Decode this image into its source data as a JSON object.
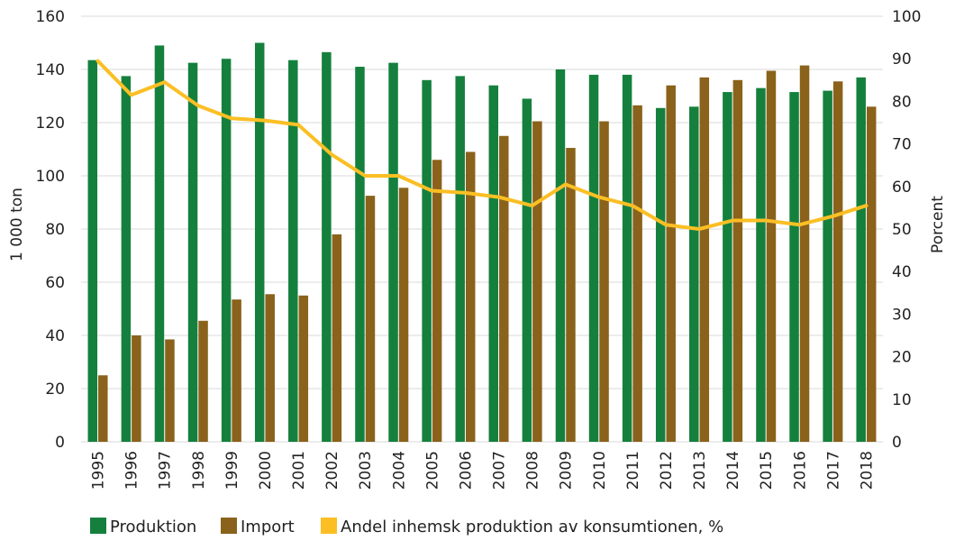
{
  "chart_data": {
    "type": "bar",
    "categories": [
      "1995",
      "1996",
      "1997",
      "1998",
      "1999",
      "2000",
      "2001",
      "2002",
      "2003",
      "2004",
      "2005",
      "2006",
      "2007",
      "2008",
      "2009",
      "2010",
      "2011",
      "2012",
      "2013",
      "2014",
      "2015",
      "2016",
      "2017",
      "2018"
    ],
    "series": [
      {
        "name": "Produktion",
        "type": "bar",
        "axis": "left",
        "color": "#15803d",
        "values": [
          143.5,
          137.5,
          149,
          142.5,
          144,
          150,
          143.5,
          146.5,
          141,
          142.5,
          136,
          137.5,
          134,
          129,
          140,
          138,
          138,
          125.5,
          126,
          131.5,
          133,
          131.5,
          132,
          137
        ]
      },
      {
        "name": "Import",
        "type": "bar",
        "axis": "left",
        "color": "#8a621b",
        "values": [
          25,
          40,
          38.5,
          45.5,
          53.5,
          55.5,
          55,
          78,
          92.5,
          95.5,
          106,
          109,
          115,
          120.5,
          110.5,
          120.5,
          126.5,
          134,
          137,
          136,
          139.5,
          141.5,
          135.5,
          126
        ]
      },
      {
        "name": "Andel inhemsk produktion av konsumtionen, %",
        "type": "line",
        "axis": "right",
        "color": "#fbbf24",
        "values": [
          89.5,
          81.5,
          84.5,
          79,
          76,
          75.5,
          74.5,
          67.5,
          62.5,
          62.5,
          59,
          58.5,
          57.5,
          55.5,
          60.5,
          57.5,
          55.5,
          51,
          50,
          52,
          52,
          51,
          53,
          55.5
        ]
      }
    ],
    "left_axis": {
      "label": "1 000 ton",
      "range": [
        0,
        160
      ],
      "ticks": [
        "0",
        "20",
        "40",
        "60",
        "80",
        "100",
        "120",
        "140",
        "160"
      ]
    },
    "right_axis": {
      "label": "Porcent",
      "range": [
        0,
        100
      ],
      "ticks": [
        "0",
        "10",
        "20",
        "30",
        "40",
        "50",
        "60",
        "70",
        "80",
        "90",
        "100"
      ]
    },
    "grid": true,
    "legend_position": "bottom-left"
  }
}
